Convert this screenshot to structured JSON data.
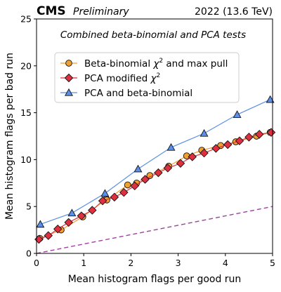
{
  "header": {
    "experiment": "CMS",
    "status": "Preliminary",
    "run_info": "2022 (13.6 TeV)"
  },
  "chart_data": {
    "type": "line",
    "subtitle": "Combined beta-binomial and PCA tests",
    "xlabel": "Mean histogram flags per good run",
    "ylabel": "Mean histogram flags per bad run",
    "xlim": [
      0,
      5
    ],
    "ylim": [
      0,
      25
    ],
    "xticks": [
      "0",
      "1",
      "2",
      "3",
      "4",
      "5"
    ],
    "yticks": [
      "0",
      "5",
      "10",
      "15",
      "20",
      "25"
    ],
    "grid": false,
    "legend_position": "upper-left",
    "series": [
      {
        "name": "Beta-binomial χ² and max pull",
        "legend_prefix": "Beta-binomial ",
        "legend_math": "χ",
        "legend_sup": "2",
        "legend_suffix": " and max pull",
        "color": "#f0a030",
        "edge": "#111111",
        "marker": "circle",
        "x": [
          0.07,
          0.52,
          0.98,
          1.48,
          1.49,
          1.93,
          2.12,
          2.4,
          2.8,
          3.18,
          3.5,
          3.9,
          4.22,
          4.66,
          4.95
        ],
        "y": [
          1.6,
          2.5,
          3.9,
          5.8,
          5.7,
          7.3,
          7.5,
          8.3,
          9.3,
          10.4,
          11.0,
          11.5,
          11.9,
          12.5,
          12.9
        ]
      },
      {
        "name": "PCA modified χ²",
        "legend_prefix": "PCA modified ",
        "legend_math": "χ",
        "legend_sup": "2",
        "legend_suffix": "",
        "color": "#e03040",
        "edge": "#111111",
        "marker": "diamond",
        "x": [
          0.05,
          0.25,
          0.45,
          0.68,
          0.95,
          1.18,
          1.4,
          1.65,
          1.85,
          2.08,
          2.3,
          2.58,
          2.78,
          3.05,
          3.3,
          3.55,
          3.8,
          4.05,
          4.3,
          4.5,
          4.72,
          4.97
        ],
        "y": [
          1.5,
          1.9,
          2.6,
          3.3,
          4.0,
          4.6,
          5.6,
          6.0,
          6.5,
          7.2,
          7.9,
          8.6,
          9.1,
          9.6,
          10.3,
          10.7,
          11.2,
          11.6,
          12.0,
          12.4,
          12.7,
          12.9
        ]
      },
      {
        "name": "PCA and beta-binomial",
        "legend_prefix": "PCA and beta-binomial",
        "legend_math": "",
        "legend_sup": "",
        "legend_suffix": "",
        "color": "#5b8fe8",
        "edge": "#111111",
        "marker": "triangle",
        "x": [
          0.08,
          0.75,
          1.45,
          2.15,
          2.85,
          3.55,
          4.25,
          4.95
        ],
        "y": [
          3.1,
          4.3,
          6.4,
          9.0,
          11.3,
          12.8,
          14.8,
          16.4
        ]
      }
    ],
    "reference_line": {
      "x": [
        0,
        5
      ],
      "y": [
        0,
        5
      ],
      "color": "#a040a0",
      "style": "dashed"
    }
  }
}
